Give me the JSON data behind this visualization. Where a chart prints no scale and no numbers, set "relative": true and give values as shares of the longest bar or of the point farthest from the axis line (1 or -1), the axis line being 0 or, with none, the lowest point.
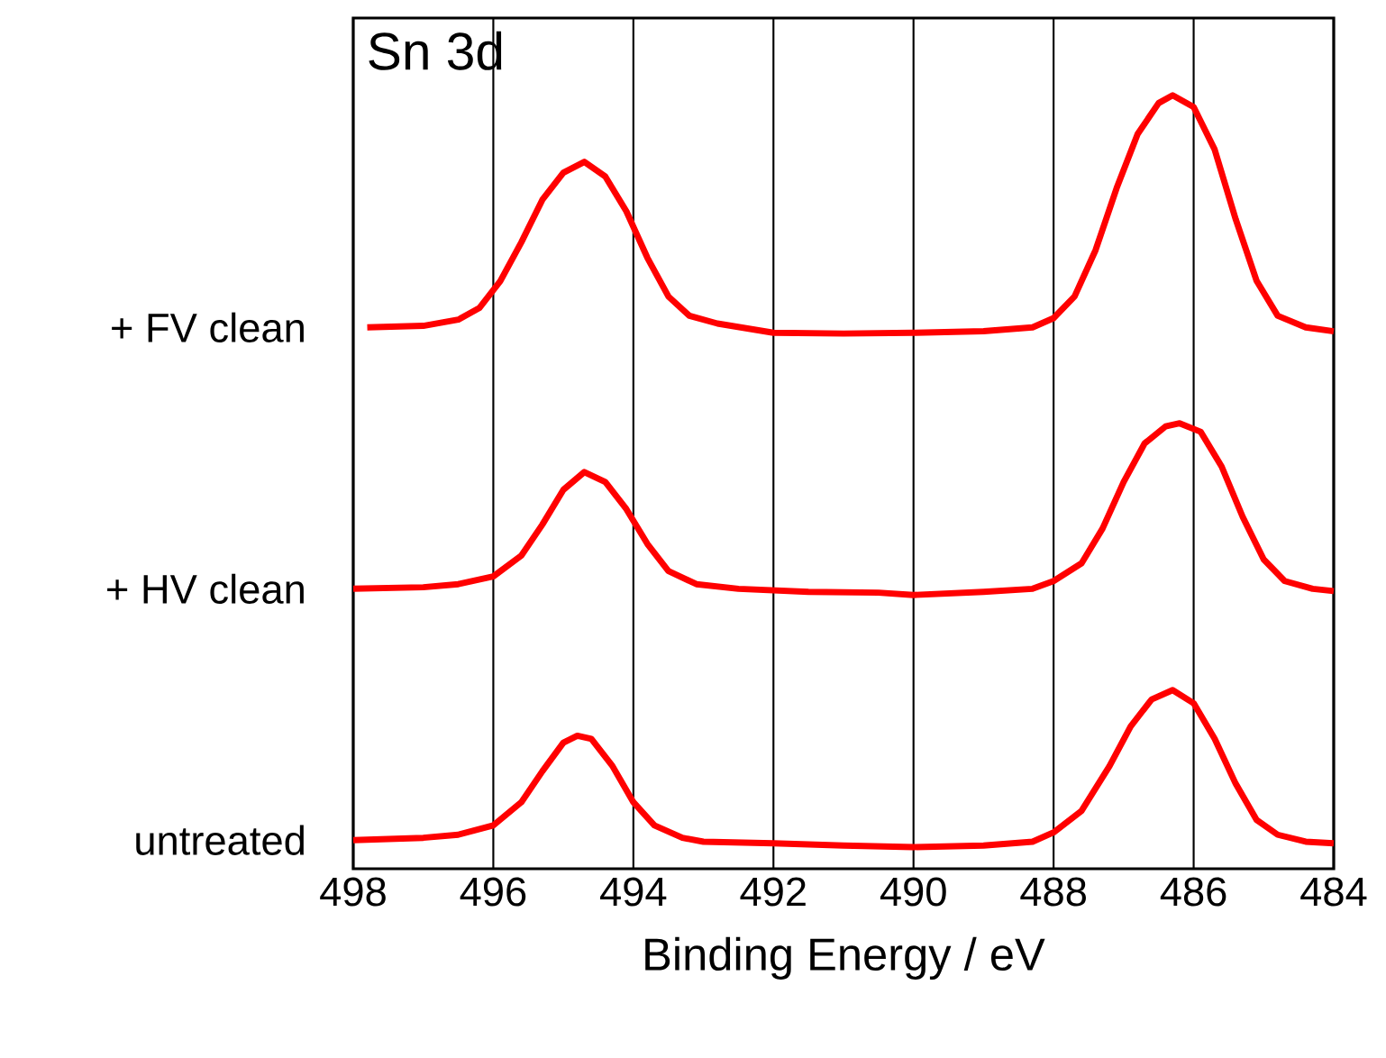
{
  "chart_data": {
    "type": "line",
    "title": "Sn 3d",
    "xlabel": "Binding Energy / eV",
    "relative": true,
    "xlim": [
      498,
      484
    ],
    "xticks": [
      498,
      496,
      494,
      492,
      490,
      488,
      486,
      484
    ],
    "grid": "x",
    "marker": "none",
    "line_style": "solid",
    "series": [
      {
        "name": "untreated",
        "color": "#ff0000",
        "x": [
          498,
          497,
          496.5,
          496,
          495.6,
          495.3,
          495.0,
          494.8,
          494.6,
          494.3,
          494.0,
          493.7,
          493.3,
          493,
          492,
          491,
          490,
          489,
          488.3,
          488,
          487.6,
          487.2,
          486.9,
          486.6,
          486.3,
          486.0,
          485.7,
          485.4,
          485.1,
          484.8,
          484.4,
          484
        ],
        "values": [
          0.037,
          0.04,
          0.044,
          0.056,
          0.086,
          0.126,
          0.163,
          0.172,
          0.168,
          0.133,
          0.086,
          0.056,
          0.04,
          0.035,
          0.033,
          0.03,
          0.028,
          0.03,
          0.035,
          0.047,
          0.075,
          0.133,
          0.184,
          0.219,
          0.231,
          0.214,
          0.168,
          0.11,
          0.063,
          0.044,
          0.035,
          0.033
        ]
      },
      {
        "name": "+ HV clean",
        "color": "#ff0000",
        "x": [
          498,
          497,
          496.5,
          496,
          495.6,
          495.3,
          495.0,
          494.7,
          494.4,
          494.1,
          493.8,
          493.5,
          493.1,
          492.5,
          491.5,
          490.5,
          490,
          489,
          488.3,
          488,
          487.6,
          487.3,
          487.0,
          486.7,
          486.4,
          486.2,
          485.9,
          485.6,
          485.3,
          485.0,
          484.7,
          484.3,
          484
        ],
        "values": [
          0.362,
          0.364,
          0.368,
          0.378,
          0.405,
          0.445,
          0.49,
          0.513,
          0.5,
          0.465,
          0.42,
          0.385,
          0.368,
          0.362,
          0.358,
          0.357,
          0.354,
          0.358,
          0.362,
          0.372,
          0.395,
          0.44,
          0.5,
          0.55,
          0.572,
          0.576,
          0.565,
          0.52,
          0.455,
          0.4,
          0.372,
          0.362,
          0.359
        ]
      },
      {
        "name": "+ FV clean",
        "color": "#ff0000",
        "x": [
          497.8,
          497,
          496.5,
          496.2,
          495.9,
          495.6,
          495.3,
          495.0,
          494.7,
          494.4,
          494.1,
          493.8,
          493.5,
          493.2,
          492.8,
          492,
          491,
          490,
          489,
          488.3,
          488,
          487.7,
          487.4,
          487.1,
          486.8,
          486.5,
          486.3,
          486.0,
          485.7,
          485.4,
          485.1,
          484.8,
          484.4,
          484
        ],
        "values": [
          0.7,
          0.702,
          0.71,
          0.725,
          0.76,
          0.81,
          0.865,
          0.9,
          0.914,
          0.895,
          0.85,
          0.79,
          0.74,
          0.715,
          0.705,
          0.693,
          0.692,
          0.693,
          0.695,
          0.7,
          0.712,
          0.74,
          0.8,
          0.88,
          0.95,
          0.99,
          1.0,
          0.985,
          0.93,
          0.84,
          0.76,
          0.715,
          0.7,
          0.695
        ]
      }
    ]
  }
}
